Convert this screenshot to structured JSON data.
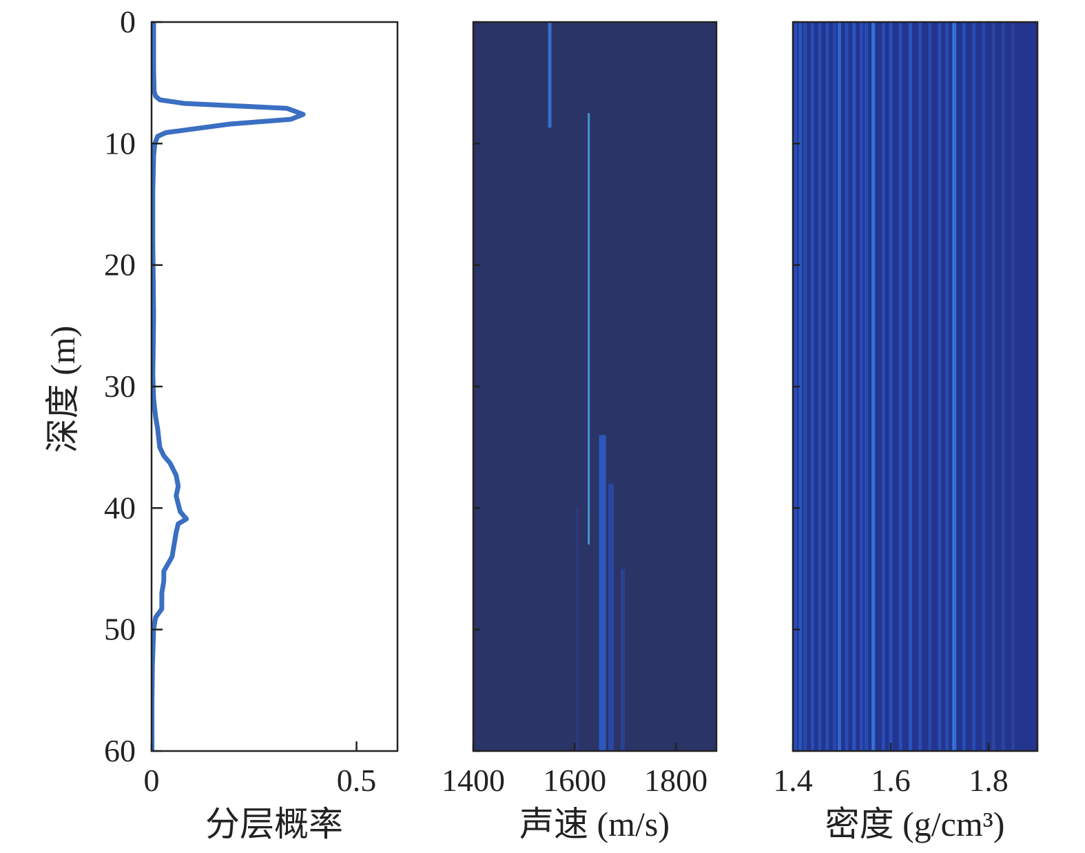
{
  "colors": {
    "line": "#3a6fc2",
    "heatmap_background": "#2b3466",
    "axis": "#222222"
  },
  "chart_data": [
    {
      "type": "line",
      "xlabel": "分层概率",
      "ylabel": "深度 (m)",
      "xlim": [
        0,
        0.6
      ],
      "ylim": [
        60,
        0
      ],
      "xticks": [
        "0",
        "0.5"
      ],
      "yticks": [
        "0",
        "10",
        "20",
        "30",
        "40",
        "50",
        "60"
      ],
      "series": [
        {
          "x": [
            0.005,
            0.005,
            0.005,
            0.006,
            0.006,
            0.008,
            0.01,
            0.02,
            0.08,
            0.33,
            0.37,
            0.34,
            0.19,
            0.035,
            0.015,
            0.008,
            0.005,
            0.003,
            0.003,
            0.004,
            0.005,
            0.004,
            0.003,
            0.005,
            0.01,
            0.015,
            0.02,
            0.03,
            0.045,
            0.06,
            0.065,
            0.06,
            0.07,
            0.085,
            0.065,
            0.06,
            0.05,
            0.03,
            0.03,
            0.025,
            0.025,
            0.01,
            0.005,
            0.002,
            0.001,
            0.001,
            0.001
          ],
          "y": [
            0,
            2,
            4,
            5.3,
            5.7,
            5.9,
            6.1,
            6.4,
            6.7,
            7.1,
            7.6,
            8.0,
            8.4,
            9.1,
            9.4,
            10,
            11,
            14,
            18,
            21,
            24,
            27,
            29,
            31,
            32.5,
            33.5,
            35,
            35.7,
            36.3,
            37.3,
            38.2,
            39,
            40.3,
            40.9,
            41.3,
            42,
            44,
            45.2,
            46,
            47,
            48.3,
            49,
            50,
            53,
            56,
            58,
            60
          ]
        }
      ]
    },
    {
      "type": "heatmap",
      "xlabel": "声速 (m/s)",
      "xlim": [
        1400,
        1880
      ],
      "ylim": [
        60,
        0
      ],
      "xticks": [
        "1400",
        "1600",
        "1800"
      ],
      "stripes": [
        {
          "x": 1551,
          "y0": 0,
          "y1": 8.7,
          "intensity": 0.55,
          "width": 5
        },
        {
          "x": 1628,
          "y0": 7.5,
          "y1": 43,
          "intensity": 0.75,
          "width": 3
        },
        {
          "x": 1655,
          "y0": 34,
          "y1": 60,
          "intensity": 0.4,
          "width": 10
        },
        {
          "x": 1672,
          "y0": 38,
          "y1": 60,
          "intensity": 0.25,
          "width": 8
        },
        {
          "x": 1695,
          "y0": 45,
          "y1": 60,
          "intensity": 0.18,
          "width": 6
        },
        {
          "x": 1605,
          "y0": 40,
          "y1": 60,
          "intensity": 0.1,
          "width": 4
        }
      ]
    },
    {
      "type": "heatmap",
      "xlabel": "密度 (g/cm³)",
      "xlim": [
        1.4,
        1.9
      ],
      "ylim": [
        60,
        0
      ],
      "xticks": [
        "1.4",
        "1.6",
        "1.8"
      ],
      "stripes": [
        {
          "x": 1.405,
          "intensity": 0.3
        },
        {
          "x": 1.415,
          "intensity": 0.35
        },
        {
          "x": 1.425,
          "intensity": 0.25
        },
        {
          "x": 1.44,
          "intensity": 0.3
        },
        {
          "x": 1.455,
          "intensity": 0.28
        },
        {
          "x": 1.47,
          "intensity": 0.3
        },
        {
          "x": 1.485,
          "intensity": 0.25
        },
        {
          "x": 1.495,
          "intensity": 0.45
        },
        {
          "x": 1.51,
          "intensity": 0.3
        },
        {
          "x": 1.525,
          "intensity": 0.35
        },
        {
          "x": 1.54,
          "intensity": 0.3
        },
        {
          "x": 1.55,
          "intensity": 0.28
        },
        {
          "x": 1.563,
          "intensity": 0.55
        },
        {
          "x": 1.566,
          "intensity": 0.5
        },
        {
          "x": 1.585,
          "intensity": 0.3
        },
        {
          "x": 1.6,
          "intensity": 0.33
        },
        {
          "x": 1.62,
          "intensity": 0.28
        },
        {
          "x": 1.64,
          "intensity": 0.35
        },
        {
          "x": 1.66,
          "intensity": 0.3
        },
        {
          "x": 1.68,
          "intensity": 0.25
        },
        {
          "x": 1.7,
          "intensity": 0.3
        },
        {
          "x": 1.715,
          "intensity": 0.28
        },
        {
          "x": 1.728,
          "intensity": 0.55
        },
        {
          "x": 1.732,
          "intensity": 0.5
        },
        {
          "x": 1.75,
          "intensity": 0.3
        },
        {
          "x": 1.77,
          "intensity": 0.28
        },
        {
          "x": 1.79,
          "intensity": 0.25
        },
        {
          "x": 1.81,
          "intensity": 0.22
        },
        {
          "x": 1.83,
          "intensity": 0.2
        },
        {
          "x": 1.85,
          "intensity": 0.18
        }
      ]
    }
  ]
}
